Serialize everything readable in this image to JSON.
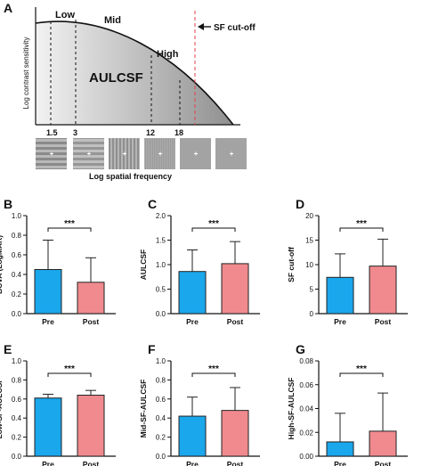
{
  "panel_a": {
    "letter": "A",
    "region_labels": {
      "low": "Low",
      "mid": "Mid",
      "high": "High"
    },
    "area_label": "AULCSF",
    "cutoff_label": "SF cut-off",
    "ylabel": "Log contrast sensitivity",
    "xlabel": "Log spatial frequency",
    "marker_labels": [
      "1.5",
      "3",
      "12",
      "18"
    ],
    "colors": {
      "cutoff_line": "#e0434a",
      "curve": "#111111"
    }
  },
  "chart_data": [
    {
      "letter": "B",
      "type": "bar",
      "categories": [
        "Pre",
        "Post"
      ],
      "values": [
        0.45,
        0.32
      ],
      "errors": [
        0.3,
        0.25
      ],
      "ylabel": "BCVA (LogMAR)",
      "ylim": [
        0,
        1.0
      ],
      "yticks": [
        "0.0",
        "0.2",
        "0.4",
        "0.6",
        "0.8",
        "1.0"
      ],
      "significance": "***"
    },
    {
      "letter": "C",
      "type": "bar",
      "categories": [
        "Pre",
        "Post"
      ],
      "values": [
        0.86,
        1.02
      ],
      "errors": [
        0.44,
        0.45
      ],
      "ylabel": "AULCSF",
      "ylim": [
        0,
        2.0
      ],
      "yticks": [
        "0.0",
        "0.5",
        "1.0",
        "1.5",
        "2.0"
      ],
      "significance": "***"
    },
    {
      "letter": "D",
      "type": "bar",
      "categories": [
        "Pre",
        "Post"
      ],
      "values": [
        7.4,
        9.7
      ],
      "errors": [
        4.8,
        5.5
      ],
      "ylabel": "SF cut-off",
      "ylim": [
        0,
        20
      ],
      "yticks": [
        "0",
        "5",
        "10",
        "15",
        "20"
      ],
      "significance": "***"
    },
    {
      "letter": "E",
      "type": "bar",
      "categories": [
        "Pre",
        "Post"
      ],
      "values": [
        0.61,
        0.64
      ],
      "errors": [
        0.04,
        0.05
      ],
      "ylabel": "Low-SF-AULCSF",
      "ylim": [
        0,
        1.0
      ],
      "yticks": [
        "0.0",
        "0.2",
        "0.4",
        "0.6",
        "0.8",
        "1.0"
      ],
      "significance": "***"
    },
    {
      "letter": "F",
      "type": "bar",
      "categories": [
        "Pre",
        "Post"
      ],
      "values": [
        0.42,
        0.48
      ],
      "errors": [
        0.2,
        0.24
      ],
      "ylabel": "Mid-SF-AULCSF",
      "ylim": [
        0,
        1.0
      ],
      "yticks": [
        "0.0",
        "0.2",
        "0.4",
        "0.6",
        "0.8",
        "1.0"
      ],
      "significance": "***"
    },
    {
      "letter": "G",
      "type": "bar",
      "categories": [
        "Pre",
        "Post"
      ],
      "values": [
        0.012,
        0.021
      ],
      "errors": [
        0.024,
        0.032
      ],
      "ylabel": "High-SF-AULCSF",
      "ylim": [
        0,
        0.08
      ],
      "yticks": [
        "0.00",
        "0.02",
        "0.04",
        "0.06",
        "0.08"
      ],
      "significance": "***"
    }
  ],
  "colors": {
    "pre": "#1aa7ec",
    "post": "#f08a8e"
  }
}
